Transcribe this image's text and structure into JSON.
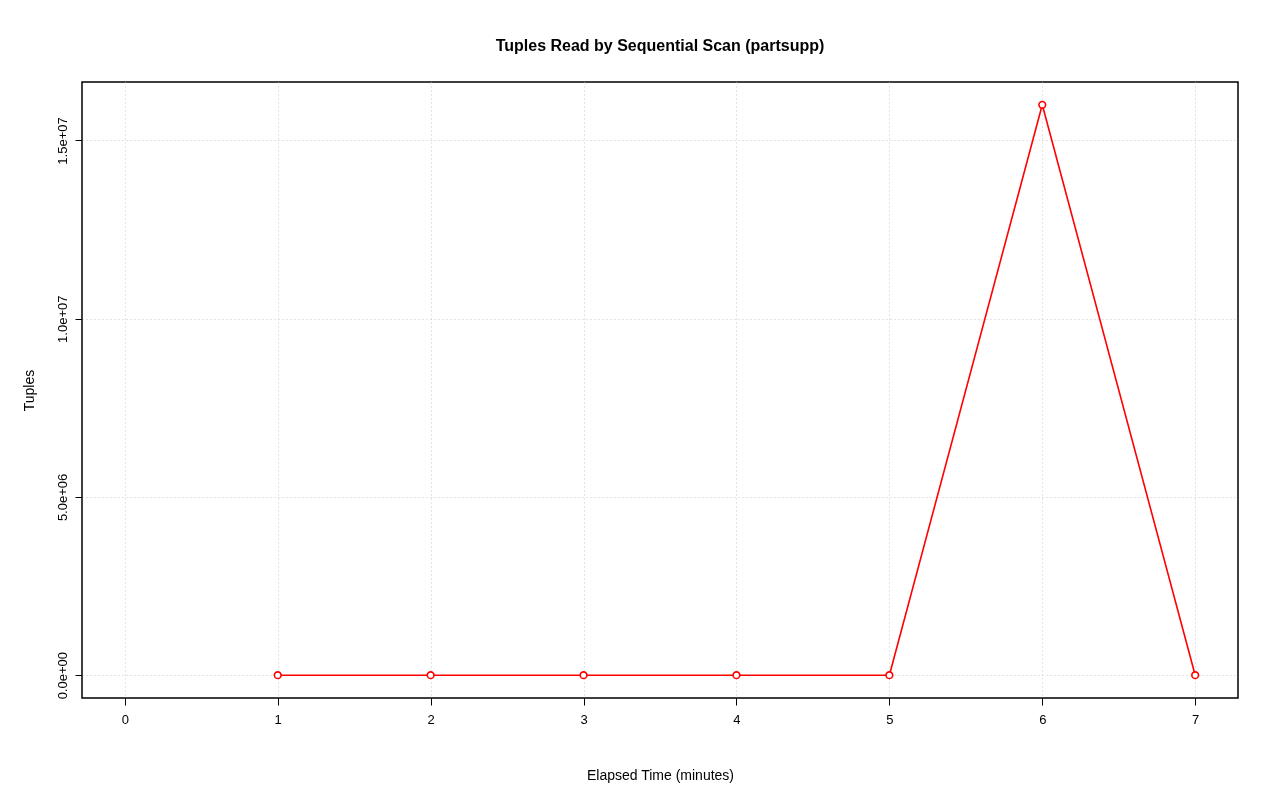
{
  "chart_data": {
    "type": "line",
    "title": "Tuples Read by Sequential Scan (partsupp)",
    "xlabel": "Elapsed Time (minutes)",
    "ylabel": "Tuples",
    "x": [
      1,
      2,
      3,
      4,
      5,
      6,
      7
    ],
    "series": [
      {
        "color": "#ff0000",
        "values": [
          0,
          0,
          0,
          0,
          0,
          16000000,
          0
        ]
      }
    ],
    "xlim": [
      -0.28,
      7.28
    ],
    "xticks": [
      0,
      1,
      2,
      3,
      4,
      5,
      6,
      7
    ],
    "ylim": [
      -640000,
      16640000
    ],
    "yticks": [
      {
        "value": 0,
        "label": "0.0e+00"
      },
      {
        "value": 5000000,
        "label": "5.0e+06"
      },
      {
        "value": 10000000,
        "label": "1.0e+07"
      },
      {
        "value": 15000000,
        "label": "1.5e+07"
      }
    ],
    "grid": true,
    "marker": "circle",
    "line_style": "solid"
  }
}
